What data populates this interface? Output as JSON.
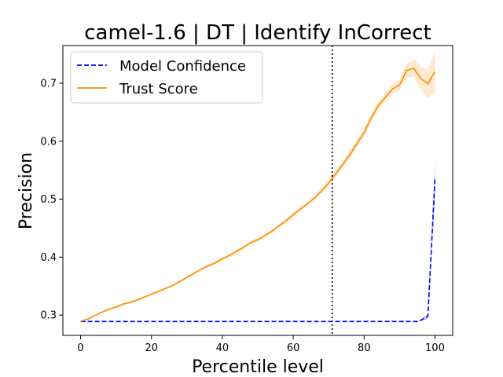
{
  "chart_data": {
    "type": "line",
    "title": "camel-1.6 | DT | Identify InCorrect",
    "xlabel": "Percentile level",
    "ylabel": "Precision",
    "xlim": [
      -5,
      105
    ],
    "ylim": [
      0.265,
      0.765
    ],
    "x_ticks": [
      0,
      20,
      40,
      60,
      80,
      100
    ],
    "y_ticks": [
      0.3,
      0.4,
      0.5,
      0.6,
      0.7
    ],
    "vline_x": 71,
    "legend_position": "top-left",
    "grid": false,
    "series": [
      {
        "name": "Model Confidence",
        "color": "#0000ff",
        "style": "dashed",
        "x": [
          0,
          10,
          20,
          30,
          40,
          50,
          60,
          70,
          80,
          90,
          95,
          96,
          98,
          100
        ],
        "y": [
          0.289,
          0.289,
          0.289,
          0.289,
          0.289,
          0.289,
          0.289,
          0.289,
          0.289,
          0.289,
          0.289,
          0.291,
          0.298,
          0.535
        ],
        "band": [
          0,
          0,
          0,
          0,
          0,
          0,
          0,
          0,
          0,
          0,
          0,
          0.002,
          0.004,
          0.03
        ]
      },
      {
        "name": "Trust Score",
        "color": "#ff8c00",
        "style": "solid",
        "x": [
          0,
          2,
          4,
          6,
          8,
          10,
          12,
          14,
          16,
          18,
          20,
          22,
          24,
          26,
          28,
          30,
          32,
          34,
          36,
          38,
          40,
          42,
          44,
          46,
          48,
          50,
          52,
          54,
          56,
          58,
          60,
          62,
          64,
          66,
          68,
          70,
          72,
          74,
          76,
          78,
          80,
          82,
          84,
          86,
          88,
          90,
          92,
          94,
          96,
          98,
          100
        ],
        "y": [
          0.289,
          0.293,
          0.299,
          0.305,
          0.31,
          0.314,
          0.319,
          0.322,
          0.326,
          0.331,
          0.336,
          0.341,
          0.346,
          0.351,
          0.358,
          0.365,
          0.372,
          0.379,
          0.385,
          0.39,
          0.397,
          0.403,
          0.41,
          0.417,
          0.425,
          0.43,
          0.437,
          0.445,
          0.454,
          0.463,
          0.473,
          0.483,
          0.492,
          0.502,
          0.514,
          0.528,
          0.544,
          0.56,
          0.577,
          0.596,
          0.615,
          0.64,
          0.661,
          0.676,
          0.69,
          0.697,
          0.722,
          0.726,
          0.708,
          0.699,
          0.72
        ],
        "band": [
          0.002,
          0.002,
          0.002,
          0.002,
          0.002,
          0.002,
          0.002,
          0.002,
          0.002,
          0.002,
          0.002,
          0.002,
          0.002,
          0.002,
          0.002,
          0.002,
          0.002,
          0.002,
          0.003,
          0.003,
          0.003,
          0.003,
          0.003,
          0.003,
          0.003,
          0.003,
          0.003,
          0.003,
          0.003,
          0.004,
          0.004,
          0.004,
          0.004,
          0.004,
          0.005,
          0.005,
          0.006,
          0.006,
          0.007,
          0.007,
          0.008,
          0.008,
          0.008,
          0.008,
          0.008,
          0.01,
          0.012,
          0.015,
          0.02,
          0.025,
          0.035
        ]
      }
    ]
  }
}
